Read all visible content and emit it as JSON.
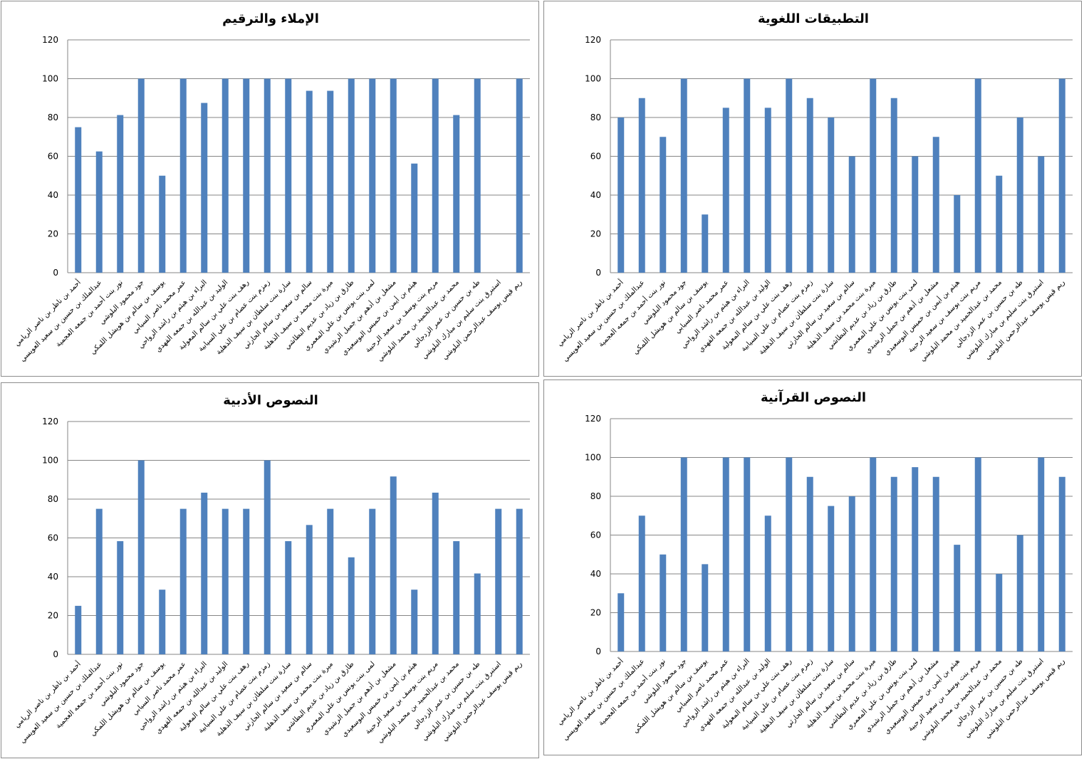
{
  "chart_data": [
    {
      "type": "bar",
      "title": "الإملاء والترقيم",
      "position": "top-left",
      "ylim": [
        0,
        120
      ],
      "yticks": [
        0,
        20,
        40,
        60,
        80,
        100,
        120
      ],
      "grid": true,
      "color": "#4F81BD",
      "values": [
        75,
        62.5,
        81.25,
        100,
        50,
        100,
        87.5,
        100,
        100,
        100,
        100,
        93.75,
        93.75,
        100,
        100,
        100,
        56.25,
        100,
        81.25,
        100,
        0,
        100
      ]
    },
    {
      "type": "bar",
      "title": "التطبيقات اللغوية",
      "position": "top-right",
      "ylim": [
        0,
        120
      ],
      "yticks": [
        0,
        20,
        40,
        60,
        80,
        100,
        120
      ],
      "grid": true,
      "color": "#4F81BD",
      "values": [
        80,
        90,
        70,
        100,
        30,
        85,
        100,
        85,
        100,
        90,
        80,
        60,
        100,
        90,
        60,
        70,
        40,
        100,
        50,
        80,
        60,
        100
      ]
    },
    {
      "type": "bar",
      "title": "النصوص الأدبية",
      "position": "bottom-left",
      "ylim": [
        0,
        120
      ],
      "yticks": [
        0,
        20,
        40,
        60,
        80,
        100,
        120
      ],
      "grid": true,
      "color": "#4F81BD",
      "values": [
        25,
        75,
        58.33,
        100,
        33.33,
        75,
        83.33,
        75,
        75,
        100,
        58.33,
        66.67,
        75,
        50,
        75,
        91.67,
        33.33,
        83.33,
        58.33,
        41.67,
        75,
        75
      ]
    },
    {
      "type": "bar",
      "title": "النصوص القرآنية",
      "position": "bottom-right",
      "ylim": [
        0,
        120
      ],
      "yticks": [
        0,
        20,
        40,
        60,
        80,
        100,
        120
      ],
      "grid": true,
      "color": "#4F81BD",
      "values": [
        30,
        70,
        50,
        100,
        45,
        100,
        100,
        70,
        100,
        90,
        75,
        80,
        100,
        90,
        95,
        90,
        55,
        100,
        40,
        60,
        100,
        90
      ]
    }
  ],
  "categories": [
    "أحمد بن ناظر بن ناصر الريامي",
    "عبدالملك بن حسين بن سعيد العويسي",
    "نور بنت أحمد بن جمعه العجمية",
    "جود محمود البلوشي",
    "يوسف بن سالم بن هويشل اللمكي",
    "عمر محمد ناصر السيابي",
    "البراء بن هيثم بن راشد الرواحي",
    "الوليد بن عبدالله بن جمعه الفهدي",
    "رهف بنت علي بن سالم المعولية",
    "زمزم بنت عصام بن علي السيابية",
    "سارة بنت سلطان بن سيف الذهلية",
    "سالم بن سعيد بن سالم الحارثي",
    "ميرة بنت محمد بن سيف الذهلية",
    "طارق بن زياد بن عديم البطاشي",
    "لمى بنت يونس بن علي المعمري",
    "مشعل بن أدهم بن جميل الرشيدي",
    "هيثم بن أيمن بن خميس البوسعيدي",
    "مريم بنت يوسف بن سعيد الرحبية",
    "محمد بن عبدالحميد بن محمد البلوشي",
    "طه بن حسين بن عمر الزدجالي",
    "استبرق بنت سليم بن مبارك البلوشي",
    "ريم قيس يوسف عبدالرحمن البلوشي"
  ]
}
